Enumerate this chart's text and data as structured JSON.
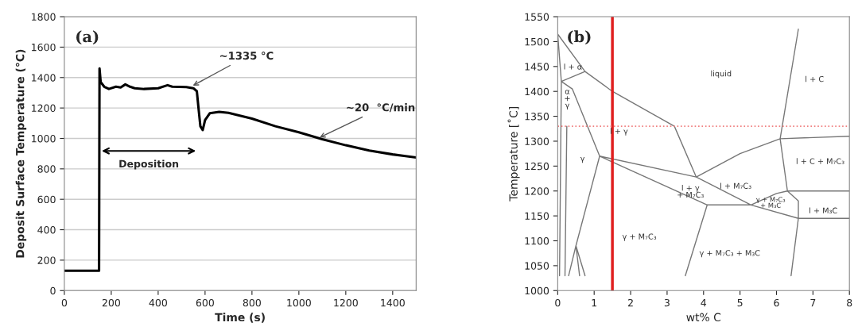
{
  "chart_data": [
    {
      "type": "line",
      "xlabel": "Time (s)",
      "ylabel": "Deposit Surface Temperature (°C)",
      "xlim": [
        0,
        1500
      ],
      "xticks": [
        0,
        200,
        400,
        600,
        800,
        1000,
        1200,
        1400
      ],
      "ylim": [
        0,
        1800
      ],
      "yticks": [
        0,
        200,
        400,
        600,
        800,
        1000,
        1200,
        1400,
        1600,
        1800
      ],
      "grid": "y",
      "series": [
        {
          "color": "#000000",
          "x": [
            0,
            148,
            150,
            155,
            170,
            190,
            220,
            240,
            260,
            280,
            300,
            340,
            400,
            440,
            460,
            520,
            550,
            565,
            572,
            580,
            590,
            600,
            620,
            660,
            700,
            800,
            900,
            1000,
            1100,
            1200,
            1300,
            1400,
            1500
          ],
          "values": [
            130,
            130,
            1460,
            1370,
            1340,
            1325,
            1340,
            1335,
            1355,
            1340,
            1330,
            1325,
            1330,
            1350,
            1340,
            1338,
            1330,
            1310,
            1200,
            1080,
            1055,
            1120,
            1165,
            1175,
            1168,
            1130,
            1080,
            1040,
            995,
            955,
            920,
            895,
            875
          ]
        }
      ],
      "annotations": [
        "(a)",
        "Deposition",
        {
          "text": "~1335 °C",
          "x": 540,
          "y": 1340
        },
        {
          "text": "~20  °C/min",
          "x": 1080,
          "y": 1000
        }
      ]
    },
    {
      "type": "line",
      "xlabel": "wt% C",
      "ylabel": "Temperature [˚C]",
      "xlim": [
        0,
        8
      ],
      "xticks": [
        0,
        1,
        2,
        3,
        4,
        5,
        6,
        7,
        8
      ],
      "ylim": [
        1000,
        1550
      ],
      "yticks": [
        1000,
        1050,
        1100,
        1150,
        1200,
        1250,
        1300,
        1350,
        1400,
        1450,
        1500,
        1550
      ],
      "series": [
        {
          "color": "#777777",
          "x": [
            0,
            0.75,
            1.5,
            3.2,
            3.8,
            5,
            6.1,
            8,
            null,
            6.6,
            6.1,
            6.3,
            8,
            null,
            1.15,
            3.8,
            5.3,
            null,
            1.15,
            4.1,
            5.3,
            6.6,
            8,
            null,
            0.4,
            1.15,
            0.5,
            null,
            4.1,
            3.5,
            null,
            6.6,
            6.4,
            null,
            5.3,
            6.0,
            6.3,
            6.6,
            6.6,
            null,
            0,
            0.1,
            0.75,
            null,
            0.1,
            0.4,
            null,
            0.1,
            0.05,
            null,
            0.25,
            0.2,
            null,
            0.3,
            0.5,
            0.75,
            null,
            0.5,
            0.6
          ],
          "values": [
            1515,
            1440,
            1400,
            1330,
            1228,
            1275,
            1305,
            1310,
            null,
            1525,
            1305,
            1200,
            1200,
            null,
            1270,
            1228,
            1172,
            null,
            1270,
            1172,
            1172,
            1145,
            1145,
            null,
            1405,
            1270,
            1090,
            null,
            1172,
            1030,
            null,
            1145,
            1030,
            null,
            1172,
            1195,
            1200,
            1180,
            1145,
            null,
            1515,
            1420,
            1440,
            null,
            1420,
            1405,
            null,
            1420,
            1030,
            null,
            1330,
            1030,
            null,
            1030,
            1090,
            1030,
            null,
            1090,
            1030
          ]
        }
      ],
      "ref_lines": [
        {
          "axis": "x",
          "value": 1.5,
          "color": "#e02020",
          "line_style": "solid"
        },
        {
          "axis": "y",
          "value": 1330,
          "color": "#f08080",
          "line_style": "dotted"
        }
      ],
      "annotations": [
        "(b)",
        "l + α",
        "liquid",
        "l + C",
        "α\n+\nγ",
        "l + γ",
        "γ",
        "l + C + M₇C₃",
        "l + M₇C₃",
        "l + γ\n+ M₇C₃",
        "γ + M₇C₃",
        "γ + M₇C₃ + M₃C",
        "l + M₃C",
        "γ + M₇C₃\n+ M₃C"
      ]
    }
  ]
}
